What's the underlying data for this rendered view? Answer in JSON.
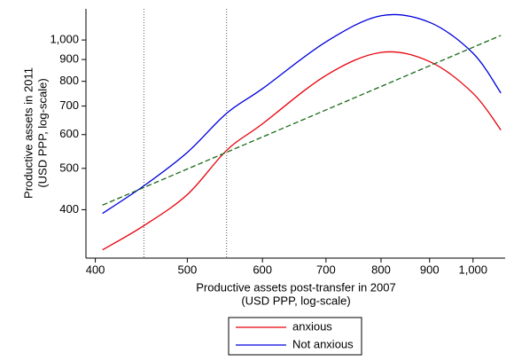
{
  "chart_data": {
    "type": "line",
    "xlabel": [
      "Productive assets post-transfer in 2007",
      "(USD PPP, log-scale)"
    ],
    "ylabel": [
      "Productive assets in 2011",
      "(USD PPP, log-scale)"
    ],
    "xscale": "log",
    "yscale": "log",
    "xlim": [
      391,
      1081
    ],
    "ylim": [
      308,
      1183
    ],
    "xticks": [
      400,
      500,
      600,
      700,
      800,
      900,
      {
        "value": 1000,
        "label": "1,000"
      }
    ],
    "yticks": [
      400,
      500,
      600,
      700,
      800,
      900,
      {
        "value": 1000,
        "label": "1,000"
      }
    ],
    "vlines": [
      450,
      550
    ],
    "vline_color": "#555555",
    "series": [
      {
        "name": "anxious",
        "color": "#e8000b",
        "style": "solid",
        "x": [
          407,
          450,
          500,
          550,
          600,
          700,
          800,
          900,
          1000,
          1070
        ],
        "values": [
          322,
          367,
          434,
          551,
          636,
          826,
          935,
          890,
          750,
          615
        ]
      },
      {
        "name": "Not anxious",
        "color": "#0000dd",
        "style": "solid",
        "x": [
          407,
          450,
          500,
          550,
          600,
          700,
          800,
          900,
          1000,
          1070
        ],
        "values": [
          392,
          455,
          545,
          673,
          769,
          990,
          1140,
          1100,
          931,
          751
        ]
      },
      {
        "color": "#1a6b1a",
        "style": "dashed",
        "x": [
          407,
          1070
        ],
        "values": [
          410,
          1025
        ]
      }
    ],
    "legend": "bottom"
  }
}
